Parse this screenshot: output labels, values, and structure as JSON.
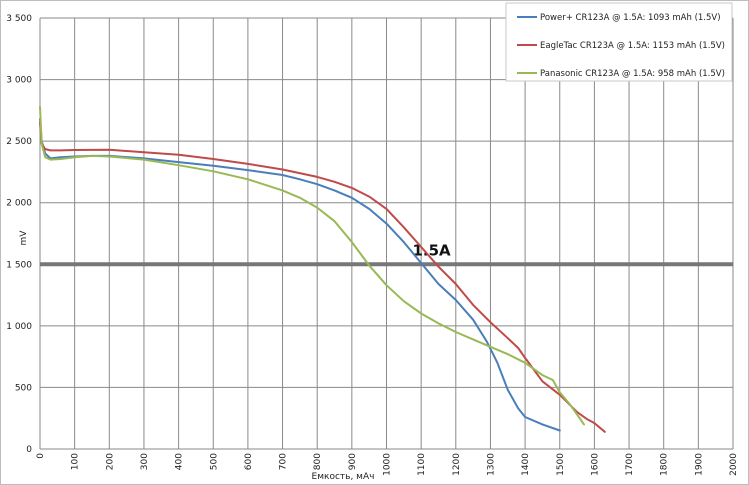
{
  "chart_data": {
    "type": "line",
    "xlabel": "Емкость, мАч",
    "ylabel": "mV",
    "xlim": [
      0,
      2000
    ],
    "ylim": [
      0,
      3500
    ],
    "x_ticks": [
      0,
      100,
      200,
      300,
      400,
      500,
      600,
      700,
      800,
      900,
      1000,
      1100,
      1200,
      1300,
      1400,
      1500,
      1600,
      1700,
      1800,
      1900,
      2000
    ],
    "y_ticks": [
      0,
      500,
      1000,
      1500,
      2000,
      2500,
      3000,
      3500
    ],
    "y_tick_labels": [
      "0",
      "500",
      "1 000",
      "1 500",
      "2 000",
      "2 500",
      "3 000",
      "3 500"
    ],
    "grid": true,
    "legend_position": "top-right",
    "reference_line": {
      "y": 1500,
      "label": "1.5A",
      "color": "#777777"
    },
    "series": [
      {
        "name": "Power+ CR123A @ 1.5A: 1093 mAh (1.5V)",
        "color": "#4a7ebb",
        "points": [
          [
            0,
            2680
          ],
          [
            5,
            2500
          ],
          [
            15,
            2400
          ],
          [
            30,
            2360
          ],
          [
            60,
            2370
          ],
          [
            100,
            2375
          ],
          [
            150,
            2380
          ],
          [
            200,
            2380
          ],
          [
            300,
            2360
          ],
          [
            400,
            2330
          ],
          [
            500,
            2300
          ],
          [
            600,
            2265
          ],
          [
            700,
            2225
          ],
          [
            750,
            2190
          ],
          [
            800,
            2150
          ],
          [
            850,
            2100
          ],
          [
            900,
            2040
          ],
          [
            950,
            1950
          ],
          [
            1000,
            1830
          ],
          [
            1050,
            1680
          ],
          [
            1100,
            1510
          ],
          [
            1150,
            1340
          ],
          [
            1200,
            1210
          ],
          [
            1250,
            1050
          ],
          [
            1290,
            870
          ],
          [
            1320,
            700
          ],
          [
            1350,
            480
          ],
          [
            1380,
            330
          ],
          [
            1400,
            260
          ],
          [
            1450,
            200
          ],
          [
            1500,
            150
          ]
        ]
      },
      {
        "name": "EagleTac CR123A @ 1.5A: 1153 mAh (1.5V)",
        "color": "#be4b48",
        "points": [
          [
            0,
            2650
          ],
          [
            5,
            2480
          ],
          [
            15,
            2435
          ],
          [
            30,
            2425
          ],
          [
            60,
            2425
          ],
          [
            100,
            2428
          ],
          [
            200,
            2430
          ],
          [
            300,
            2410
          ],
          [
            400,
            2390
          ],
          [
            500,
            2355
          ],
          [
            600,
            2315
          ],
          [
            700,
            2270
          ],
          [
            800,
            2210
          ],
          [
            850,
            2170
          ],
          [
            900,
            2120
          ],
          [
            950,
            2050
          ],
          [
            1000,
            1950
          ],
          [
            1050,
            1800
          ],
          [
            1100,
            1640
          ],
          [
            1150,
            1480
          ],
          [
            1200,
            1340
          ],
          [
            1250,
            1170
          ],
          [
            1300,
            1030
          ],
          [
            1350,
            900
          ],
          [
            1380,
            820
          ],
          [
            1400,
            740
          ],
          [
            1450,
            550
          ],
          [
            1500,
            440
          ],
          [
            1550,
            300
          ],
          [
            1580,
            240
          ],
          [
            1600,
            210
          ],
          [
            1630,
            140
          ]
        ]
      },
      {
        "name": "Panasonic CR123A @ 1.5A: 958 mAh (1.5V)",
        "color": "#98b954",
        "points": [
          [
            0,
            2780
          ],
          [
            5,
            2480
          ],
          [
            15,
            2370
          ],
          [
            30,
            2350
          ],
          [
            60,
            2355
          ],
          [
            100,
            2370
          ],
          [
            150,
            2380
          ],
          [
            200,
            2375
          ],
          [
            300,
            2350
          ],
          [
            400,
            2305
          ],
          [
            500,
            2255
          ],
          [
            600,
            2190
          ],
          [
            700,
            2100
          ],
          [
            750,
            2040
          ],
          [
            800,
            1960
          ],
          [
            850,
            1850
          ],
          [
            900,
            1680
          ],
          [
            950,
            1490
          ],
          [
            1000,
            1330
          ],
          [
            1050,
            1200
          ],
          [
            1100,
            1100
          ],
          [
            1150,
            1020
          ],
          [
            1200,
            950
          ],
          [
            1250,
            890
          ],
          [
            1300,
            830
          ],
          [
            1350,
            770
          ],
          [
            1400,
            700
          ],
          [
            1450,
            600
          ],
          [
            1480,
            560
          ],
          [
            1500,
            460
          ],
          [
            1530,
            360
          ],
          [
            1550,
            280
          ],
          [
            1570,
            200
          ]
        ]
      }
    ]
  }
}
